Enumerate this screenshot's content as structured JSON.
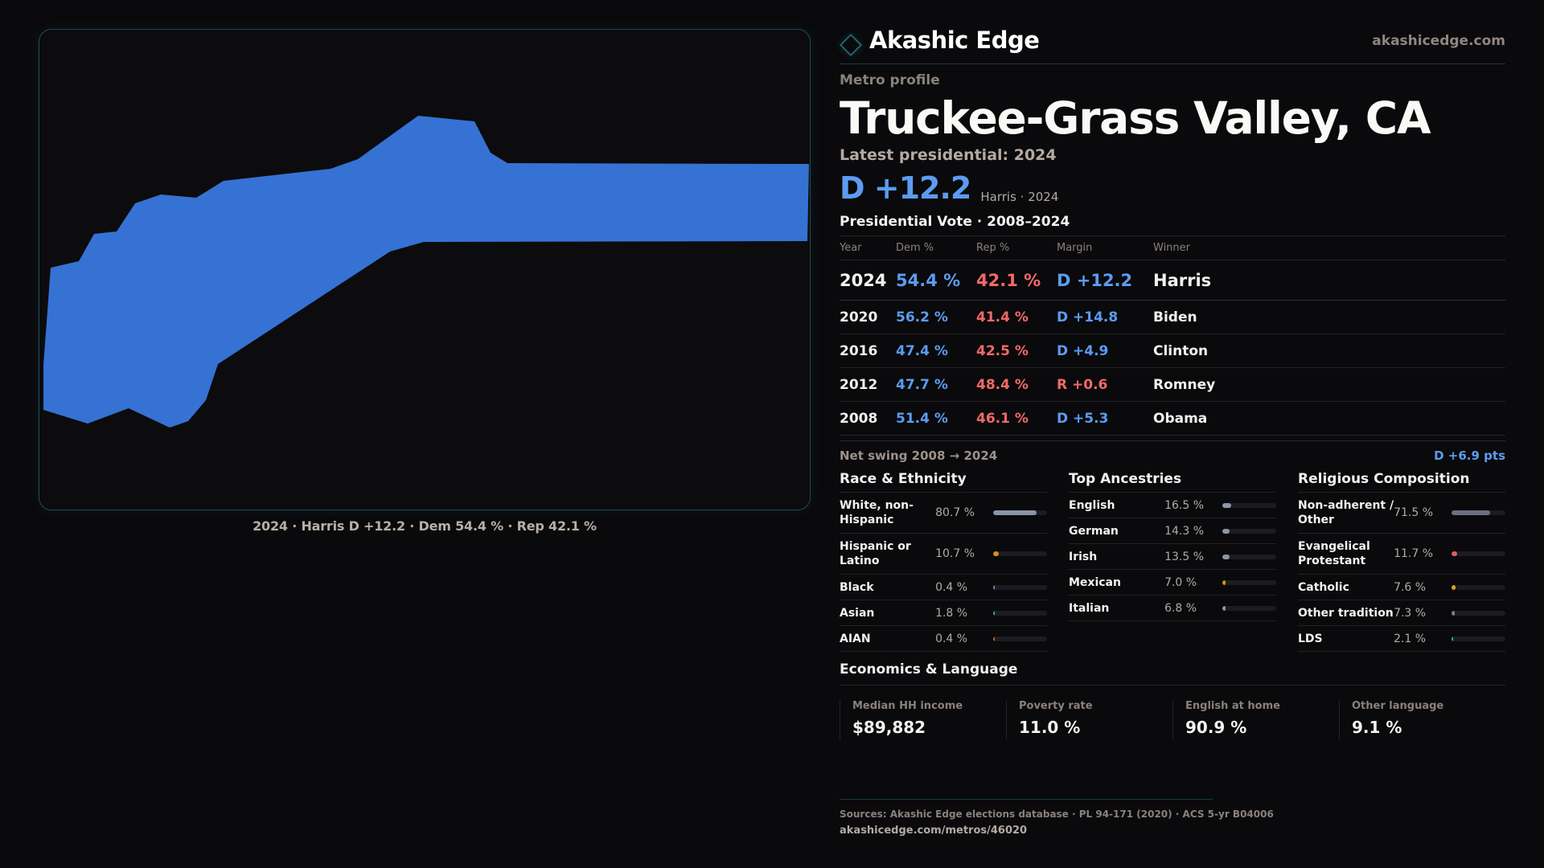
{
  "brand": {
    "name": "Akashic Edge",
    "url": "akashicedge.com",
    "logo_icon": "diamond-outline-icon"
  },
  "map": {
    "region": "Truckee-Grass Valley, CA",
    "fill_color": "#3572d4",
    "caption": "2024 · Harris D +12.2 · Dem 54.4 % · Rep 42.1 %"
  },
  "profile": {
    "eyebrow": "Metro profile",
    "title": "Truckee-Grass Valley, CA",
    "latest_label": "Latest presidential: 2024",
    "headline_margin": "D +12.2",
    "headline_sub": "Harris · 2024"
  },
  "vote_table": {
    "title": "Presidential Vote · 2008–2024",
    "headers": [
      "Year",
      "Dem %",
      "Rep %",
      "Margin",
      "Winner"
    ],
    "rows": [
      {
        "year": "2024",
        "dem": "54.4 %",
        "rep": "42.1 %",
        "margin": "D +12.2",
        "margin_party": "dem",
        "winner": "Harris"
      },
      {
        "year": "2020",
        "dem": "56.2 %",
        "rep": "41.4 %",
        "margin": "D +14.8",
        "margin_party": "dem",
        "winner": "Biden"
      },
      {
        "year": "2016",
        "dem": "47.4 %",
        "rep": "42.5 %",
        "margin": "D +4.9",
        "margin_party": "dem",
        "winner": "Clinton"
      },
      {
        "year": "2012",
        "dem": "47.7 %",
        "rep": "48.4 %",
        "margin": "R +0.6",
        "margin_party": "rep",
        "winner": "Romney"
      },
      {
        "year": "2008",
        "dem": "51.4 %",
        "rep": "46.1 %",
        "margin": "D +5.3",
        "margin_party": "dem",
        "winner": "Obama"
      }
    ],
    "swing_label": "Net swing 2008 → 2024",
    "swing_value": "D +6.9 pts"
  },
  "demographics": {
    "race": {
      "title": "Race & Ethnicity",
      "items": [
        {
          "label": "White, non-Hispanic",
          "value": "80.7 %",
          "pct": 80.7,
          "color": "#8a95a8"
        },
        {
          "label": "Hispanic or Latino",
          "value": "10.7 %",
          "pct": 10.7,
          "color": "#d9900f"
        },
        {
          "label": "Black",
          "value": "0.4 %",
          "pct": 0.4,
          "color": "#8a7ad0"
        },
        {
          "label": "Asian",
          "value": "1.8 %",
          "pct": 1.8,
          "color": "#2bb57f"
        },
        {
          "label": "AIAN",
          "value": "0.4 %",
          "pct": 0.4,
          "color": "#c0672a"
        }
      ]
    },
    "ancestry": {
      "title": "Top Ancestries",
      "items": [
        {
          "label": "English",
          "value": "16.5 %",
          "pct": 16.5,
          "color": "#8a95a8"
        },
        {
          "label": "German",
          "value": "14.3 %",
          "pct": 14.3,
          "color": "#8a95a8"
        },
        {
          "label": "Irish",
          "value": "13.5 %",
          "pct": 13.5,
          "color": "#8a95a8"
        },
        {
          "label": "Mexican",
          "value": "7.0 %",
          "pct": 7.0,
          "color": "#d9900f"
        },
        {
          "label": "Italian",
          "value": "6.8 %",
          "pct": 6.8,
          "color": "#8a95a8"
        }
      ]
    },
    "religion": {
      "title": "Religious Composition",
      "items": [
        {
          "label": "Non-adherent / Other",
          "value": "71.5 %",
          "pct": 71.5,
          "color": "#6b7080"
        },
        {
          "label": "Evangelical Protestant",
          "value": "11.7 %",
          "pct": 11.7,
          "color": "#e05c5c"
        },
        {
          "label": "Catholic",
          "value": "7.6 %",
          "pct": 7.6,
          "color": "#e0a418"
        },
        {
          "label": "Other tradition",
          "value": "7.3 %",
          "pct": 7.3,
          "color": "#7a7f8c"
        },
        {
          "label": "LDS",
          "value": "2.1 %",
          "pct": 2.1,
          "color": "#2ab5a5"
        }
      ]
    }
  },
  "economics": {
    "title": "Economics & Language",
    "cards": [
      {
        "label": "Median HH income",
        "value": "$89,882"
      },
      {
        "label": "Poverty rate",
        "value": "11.0 %"
      },
      {
        "label": "English at home",
        "value": "90.9 %"
      },
      {
        "label": "Other language",
        "value": "9.1 %"
      }
    ]
  },
  "footer": {
    "sources": "Sources: Akashic Edge elections database · PL 94-171 (2020) · ACS 5-yr B04006",
    "url": "akashicedge.com/metros/46020"
  }
}
